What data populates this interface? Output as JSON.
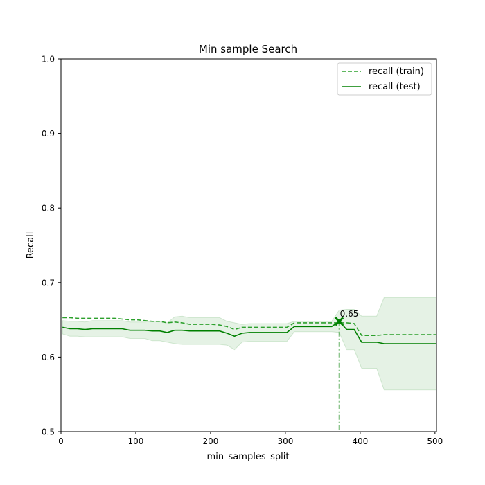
{
  "chart_data": {
    "type": "line",
    "title": "Min sample Search",
    "xlabel": "min_samples_split",
    "ylabel": "Recall",
    "xlim": [
      0,
      502
    ],
    "ylim": [
      0.5,
      1.0
    ],
    "xticks": [
      0,
      100,
      200,
      300,
      400,
      500
    ],
    "xtick_labels": [
      "0",
      "100",
      "200",
      "300",
      "400",
      "500"
    ],
    "yticks": [
      0.5,
      0.6,
      0.7,
      0.8,
      0.9,
      1.0
    ],
    "ytick_labels": [
      "0.5",
      "0.6",
      "0.7",
      "0.8",
      "0.9",
      "1.0"
    ],
    "grid": false,
    "legend_position": "top-right",
    "x": [
      2,
      12,
      22,
      32,
      42,
      52,
      62,
      72,
      82,
      92,
      102,
      112,
      122,
      132,
      142,
      152,
      162,
      172,
      182,
      192,
      202,
      212,
      222,
      232,
      242,
      252,
      262,
      272,
      282,
      292,
      302,
      312,
      322,
      332,
      342,
      352,
      362,
      372,
      382,
      392,
      402,
      412,
      422,
      432,
      442,
      452,
      462,
      472,
      482,
      492,
      502
    ],
    "series": [
      {
        "name": "recall (train)",
        "style": "dashed",
        "color": "#2ca02c",
        "values": [
          0.653,
          0.653,
          0.652,
          0.652,
          0.652,
          0.652,
          0.652,
          0.652,
          0.651,
          0.65,
          0.65,
          0.649,
          0.648,
          0.648,
          0.646,
          0.647,
          0.646,
          0.644,
          0.644,
          0.644,
          0.644,
          0.643,
          0.641,
          0.637,
          0.64,
          0.64,
          0.64,
          0.64,
          0.64,
          0.64,
          0.64,
          0.646,
          0.646,
          0.646,
          0.646,
          0.646,
          0.646,
          0.646,
          0.646,
          0.645,
          0.629,
          0.629,
          0.629,
          0.63,
          0.63,
          0.63,
          0.63,
          0.63,
          0.63,
          0.63,
          0.63
        ]
      },
      {
        "name": "recall (test)",
        "style": "solid",
        "color": "#008000",
        "values": [
          0.64,
          0.638,
          0.638,
          0.637,
          0.638,
          0.638,
          0.638,
          0.638,
          0.638,
          0.636,
          0.636,
          0.636,
          0.635,
          0.635,
          0.633,
          0.636,
          0.636,
          0.635,
          0.635,
          0.635,
          0.635,
          0.635,
          0.632,
          0.628,
          0.632,
          0.633,
          0.633,
          0.633,
          0.633,
          0.633,
          0.633,
          0.641,
          0.641,
          0.641,
          0.641,
          0.641,
          0.641,
          0.648,
          0.637,
          0.637,
          0.62,
          0.62,
          0.62,
          0.618,
          0.618,
          0.618,
          0.618,
          0.618,
          0.618,
          0.618,
          0.618
        ],
        "band_lower": [
          0.631,
          0.628,
          0.628,
          0.627,
          0.627,
          0.627,
          0.627,
          0.627,
          0.627,
          0.625,
          0.625,
          0.625,
          0.622,
          0.622,
          0.62,
          0.618,
          0.617,
          0.617,
          0.617,
          0.617,
          0.617,
          0.617,
          0.616,
          0.61,
          0.62,
          0.621,
          0.621,
          0.621,
          0.621,
          0.621,
          0.621,
          0.634,
          0.634,
          0.634,
          0.634,
          0.634,
          0.634,
          0.633,
          0.61,
          0.61,
          0.585,
          0.585,
          0.585,
          0.556,
          0.556,
          0.556,
          0.556,
          0.556,
          0.556,
          0.556,
          0.556
        ],
        "band_upper": [
          0.649,
          0.648,
          0.648,
          0.647,
          0.649,
          0.649,
          0.649,
          0.649,
          0.649,
          0.647,
          0.647,
          0.647,
          0.648,
          0.648,
          0.646,
          0.654,
          0.655,
          0.653,
          0.653,
          0.653,
          0.653,
          0.653,
          0.648,
          0.646,
          0.644,
          0.645,
          0.645,
          0.645,
          0.645,
          0.645,
          0.645,
          0.648,
          0.648,
          0.648,
          0.648,
          0.648,
          0.648,
          0.663,
          0.664,
          0.664,
          0.655,
          0.655,
          0.655,
          0.68,
          0.68,
          0.68,
          0.68,
          0.68,
          0.68,
          0.68,
          0.68
        ]
      }
    ],
    "best_point": {
      "x": 372,
      "y": 0.648,
      "label": "0.65"
    }
  }
}
